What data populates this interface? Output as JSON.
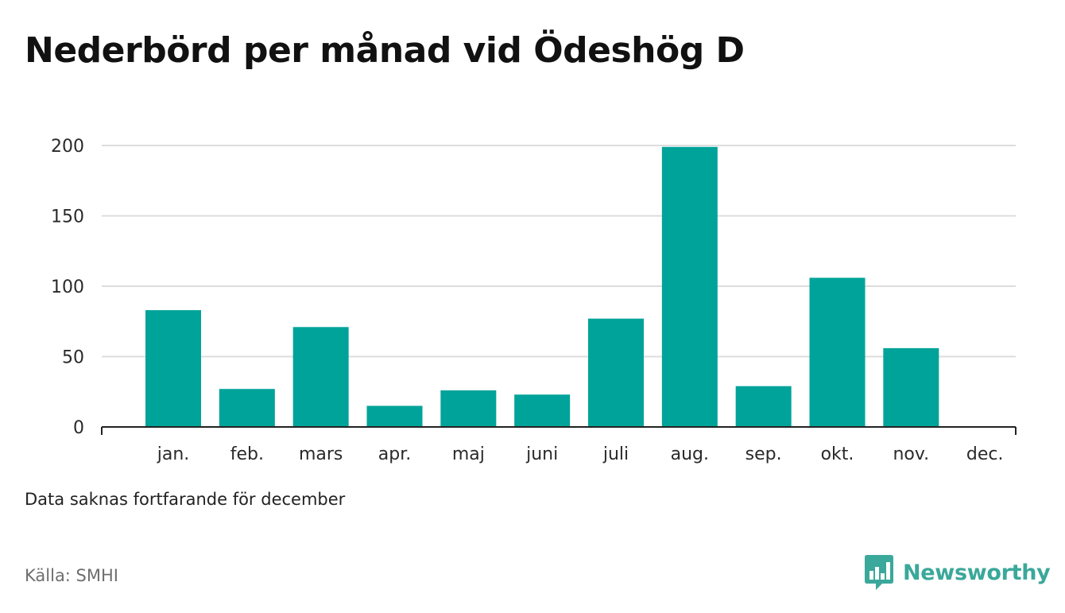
{
  "title": "Nederbörd per månad vid Ödeshög D",
  "note": "Data saknas fortfarande för december",
  "source": "Källa: SMHI",
  "brand": {
    "name": "Newsworthy",
    "icon": "newsworthy-logo-icon",
    "color": "#3aa89a"
  },
  "colors": {
    "bar": "#00a39a",
    "grid": "#dddddd",
    "axis": "#222222"
  },
  "chart_data": {
    "type": "bar",
    "title": "Nederbörd per månad vid Ödeshög D",
    "xlabel": "",
    "ylabel": "",
    "categories": [
      "jan.",
      "feb.",
      "mars",
      "apr.",
      "maj",
      "juni",
      "juli",
      "aug.",
      "sep.",
      "okt.",
      "nov.",
      "dec."
    ],
    "values": [
      83,
      27,
      71,
      15,
      26,
      23,
      77,
      199,
      29,
      106,
      56,
      null
    ],
    "ylim": [
      0,
      200
    ],
    "yticks": [
      0,
      50,
      100,
      150,
      200
    ],
    "grid": true,
    "legend": "none"
  }
}
